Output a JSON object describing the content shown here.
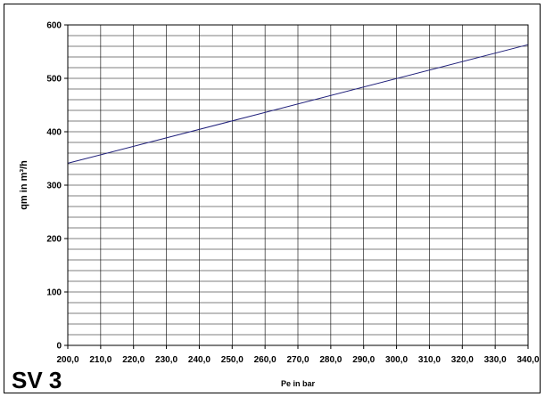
{
  "chart_label": "SV 3",
  "chart_data": {
    "type": "line",
    "xlabel": "Pe in bar",
    "ylabel": "qm in m³/h",
    "xlim": [
      200,
      340
    ],
    "ylim": [
      0,
      600
    ],
    "x_ticks": [
      "200,0",
      "210,0",
      "220,0",
      "230,0",
      "240,0",
      "250,0",
      "260,0",
      "270,0",
      "280,0",
      "290,0",
      "300,0",
      "310,0",
      "320,0",
      "330,0",
      "340,0"
    ],
    "y_ticks": [
      "0",
      "100",
      "200",
      "300",
      "400",
      "500",
      "600"
    ],
    "y_minor_step": 20,
    "grid": true,
    "series": [
      {
        "x": [
          200,
          340
        ],
        "y": [
          341,
          563
        ],
        "color": "#1f1f7a"
      }
    ]
  }
}
